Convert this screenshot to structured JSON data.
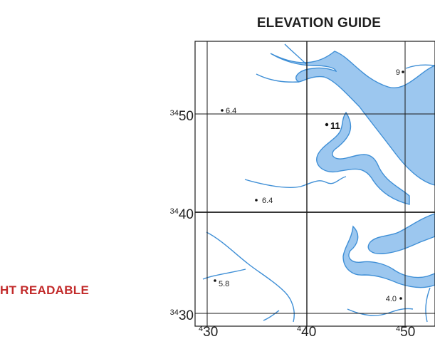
{
  "map": {
    "title": "ELEVATION GUIDE",
    "side_caption": "HT READABLE",
    "colors": {
      "water": "#3f8fd6",
      "water_fill": "#9cc7ef",
      "grid": "#1a1a1a",
      "accent_text": "#c22a2a"
    },
    "grid_labels": {
      "eastings": [
        {
          "sup": "4",
          "main": "30"
        },
        {
          "sup": "4",
          "main": "40"
        },
        {
          "sup": "4",
          "main": "50"
        }
      ],
      "northings": [
        {
          "sup": "34",
          "main": "50"
        },
        {
          "sup": "34",
          "main": "40"
        },
        {
          "sup": "34",
          "main": "30"
        }
      ]
    },
    "elevations": [
      {
        "value": "6.4",
        "emphasis": false
      },
      {
        "value": "9",
        "emphasis": false
      },
      {
        "value": "11",
        "emphasis": true
      },
      {
        "value": "6.4",
        "emphasis": false
      },
      {
        "value": "5.8",
        "emphasis": false
      },
      {
        "value": "4.0",
        "emphasis": false
      }
    ]
  }
}
